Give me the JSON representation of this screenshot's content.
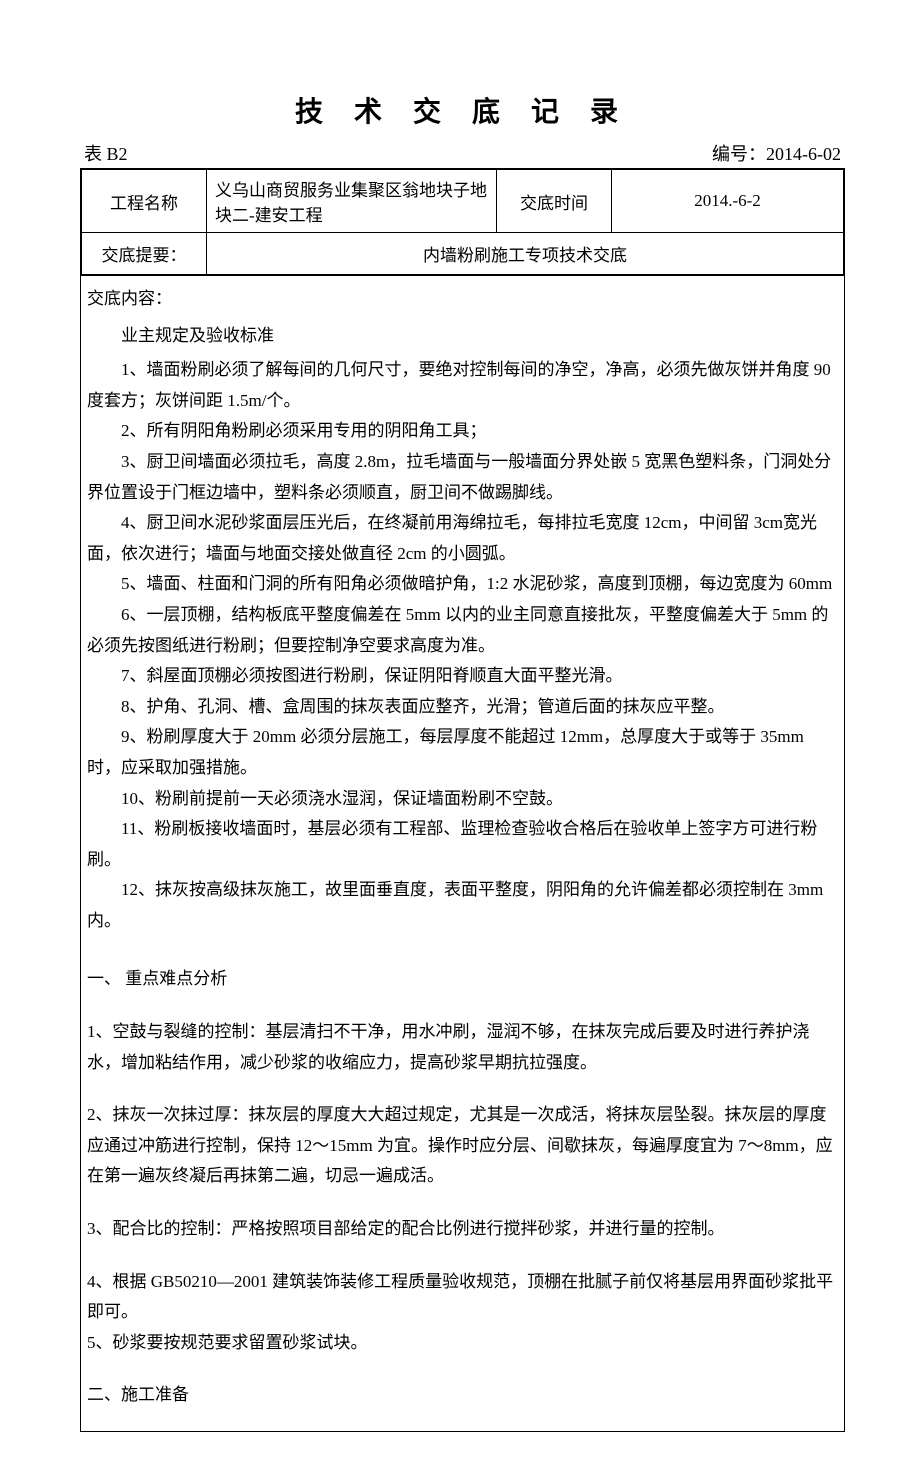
{
  "document": {
    "title": "技 术 交 底 记 录",
    "table_label": "表 B2",
    "doc_number_label": "编号：",
    "doc_number": "2014-6-02",
    "project_label": "工程名称",
    "project_name": "义乌山商贸服务业集聚区翁地块子地块二-建安工程",
    "date_label": "交底时间",
    "date_value": "2014.-6-2",
    "summary_label": "交底提要：",
    "summary_value": "内墙粉刷施工专项技术交底",
    "content_label": "交底内容：",
    "standards_title": "业主规定及验收标准",
    "standards": [
      "1、墙面粉刷必须了解每间的几何尺寸，要绝对控制每间的净空，净高，必须先做灰饼并角度 90 度套方；灰饼间距 1.5m/个。",
      "2、所有阴阳角粉刷必须采用专用的阴阳角工具；",
      "3、厨卫间墙面必须拉毛，高度 2.8m，拉毛墙面与一般墙面分界处嵌 5 宽黑色塑料条，门洞处分界位置设于门框边墙中，塑料条必须顺直，厨卫间不做踢脚线。",
      "4、厨卫间水泥砂浆面层压光后，在终凝前用海绵拉毛，每排拉毛宽度 12cm，中间留 3cm宽光面，依次进行；墙面与地面交接处做直径 2cm 的小圆弧。",
      "5、墙面、柱面和门洞的所有阳角必须做暗护角，1:2 水泥砂浆，高度到顶棚，每边宽度为 60mm",
      "6、一层顶棚，结构板底平整度偏差在 5mm 以内的业主同意直接批灰，平整度偏差大于 5mm 的必须先按图纸进行粉刷；但要控制净空要求高度为准。",
      "7、斜屋面顶棚必须按图进行粉刷，保证阴阳脊顺直大面平整光滑。",
      "8、护角、孔洞、槽、盒周围的抹灰表面应整齐，光滑；管道后面的抹灰应平整。",
      "9、粉刷厚度大于 20mm 必须分层施工，每层厚度不能超过 12mm，总厚度大于或等于 35mm 时，应采取加强措施。",
      "10、粉刷前提前一天必须浇水湿润，保证墙面粉刷不空鼓。",
      "11、粉刷板接收墙面时，基层必须有工程部、监理检查验收合格后在验收单上签字方可进行粉刷。",
      "12、抹灰按高级抹灰施工，故里面垂直度，表面平整度，阴阳角的允许偏差都必须控制在 3mm 内。"
    ],
    "section1_title": "一、  重点难点分析",
    "section1_items": [
      "1、空鼓与裂缝的控制：基层清扫不干净，用水冲刷，湿润不够，在抹灰完成后要及时进行养护浇水，增加粘结作用，减少砂浆的收缩应力，提高砂浆早期抗拉强度。",
      "2、抹灰一次抹过厚：抹灰层的厚度大大超过规定，尤其是一次成活，将抹灰层坠裂。抹灰层的厚度应通过冲筋进行控制，保持 12～15mm 为宜。操作时应分层、间歇抹灰，每遍厚度宜为 7～8mm，应在第一遍灰终凝后再抹第二遍，切忌一遍成活。",
      "3、配合比的控制：严格按照项目部给定的配合比例进行搅拌砂浆，并进行量的控制。",
      "4、根据 GB50210—2001 建筑装饰装修工程质量验收规范，顶棚在批腻子前仅将基层用界面砂浆批平即可。",
      "5、砂浆要按规范要求留置砂浆试块。"
    ],
    "section2_title": "二、施工准备"
  }
}
